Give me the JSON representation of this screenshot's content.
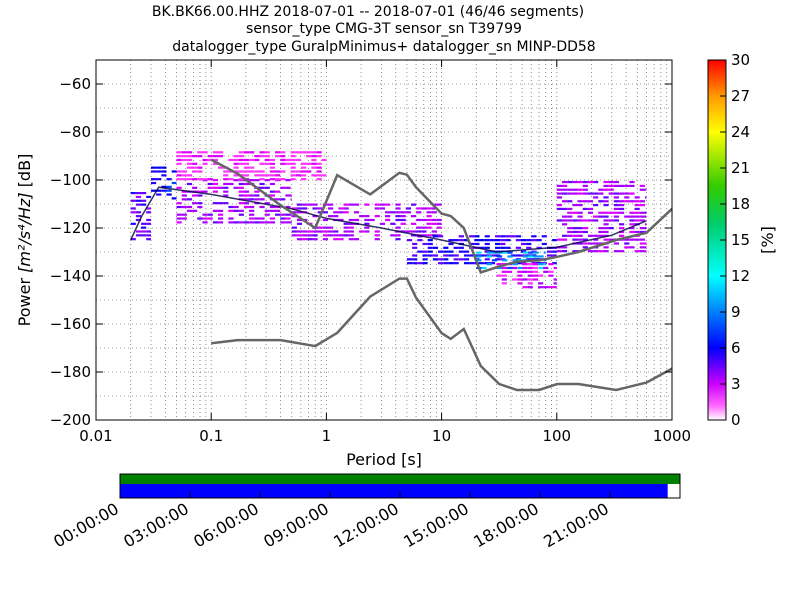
{
  "title": {
    "line1": "BK.BK66.00.HHZ   2018-07-01 -- 2018-07-01  (46/46 segments)",
    "line2": "sensor_type CMG-3T sensor_sn T39799",
    "line3": "datalogger_type GuralpMinimus+ datalogger_sn MINP-DD58"
  },
  "chart_data": {
    "type": "heatmap",
    "xlabel": "Period [s]",
    "ylabel_prefix": "Power ",
    "ylabel_units": "[m²/s⁴/Hz]",
    "ylabel_suffix": " [dB]",
    "x_scale": "log",
    "xlim": [
      0.01,
      1000
    ],
    "ylim": [
      -200,
      -50
    ],
    "x_tick_labels": [
      "0.01",
      "0.1",
      "1",
      "10",
      "100",
      "1000"
    ],
    "x_ticks": [
      0.01,
      0.1,
      1,
      10,
      100,
      1000
    ],
    "y_ticks": [
      -60,
      -80,
      -100,
      -120,
      -140,
      -160,
      -180,
      -200
    ],
    "y_tick_labels": [
      "−60",
      "−80",
      "−100",
      "−120",
      "−140",
      "−160",
      "−180",
      "−200"
    ],
    "colorbar": {
      "label": "[%]",
      "min": 0,
      "max": 30,
      "ticks": [
        0,
        3,
        6,
        9,
        12,
        15,
        18,
        21,
        24,
        27,
        30
      ],
      "tick_labels": [
        "0",
        "3",
        "6",
        "9",
        "12",
        "15",
        "18",
        "21",
        "24",
        "27",
        "30"
      ]
    },
    "noise_models": {
      "new_high_noise_model": [
        [
          0.1,
          -91.5
        ],
        [
          0.17,
          -97.4
        ],
        [
          0.4,
          -110.5
        ],
        [
          0.8,
          -120
        ],
        [
          1.24,
          -98
        ],
        [
          2.4,
          -106
        ],
        [
          4.3,
          -97
        ],
        [
          5,
          -97.8
        ],
        [
          6,
          -103
        ],
        [
          10,
          -114
        ],
        [
          12,
          -115
        ],
        [
          15.6,
          -120
        ],
        [
          21.9,
          -138.5
        ],
        [
          31.6,
          -136
        ],
        [
          45,
          -134
        ],
        [
          70,
          -133.5
        ],
        [
          101,
          -132
        ],
        [
          154,
          -130
        ],
        [
          328,
          -125
        ],
        [
          600,
          -122
        ],
        [
          1000,
          -112
        ]
      ],
      "new_low_noise_model": [
        [
          0.1,
          -168
        ],
        [
          0.17,
          -166.7
        ],
        [
          0.4,
          -166.7
        ],
        [
          0.8,
          -169.2
        ],
        [
          1.24,
          -163.7
        ],
        [
          2.4,
          -148.6
        ],
        [
          4.3,
          -141.1
        ],
        [
          5,
          -141.1
        ],
        [
          6,
          -149
        ],
        [
          10,
          -163.8
        ],
        [
          12,
          -166.2
        ],
        [
          15.6,
          -162.1
        ],
        [
          21.9,
          -177.5
        ],
        [
          31.6,
          -185
        ],
        [
          45,
          -187.5
        ],
        [
          70,
          -187.5
        ],
        [
          101,
          -185
        ],
        [
          154,
          -185
        ],
        [
          328,
          -187.5
        ],
        [
          600,
          -184.4
        ],
        [
          1000,
          -178.6
        ]
      ]
    },
    "mean_curve": [
      [
        0.02,
        -125
      ],
      [
        0.025,
        -115
      ],
      [
        0.035,
        -103
      ],
      [
        0.1,
        -106
      ],
      [
        0.5,
        -112
      ],
      [
        1,
        -116
      ],
      [
        3,
        -120
      ],
      [
        10,
        -125
      ],
      [
        30,
        -130
      ],
      [
        100,
        -128
      ],
      [
        300,
        -123
      ],
      [
        600,
        -117
      ]
    ],
    "density_bands": [
      {
        "x": [
          0.02,
          0.03
        ],
        "y": [
          -125,
          -105
        ],
        "percent": 4
      },
      {
        "x": [
          0.03,
          0.05
        ],
        "y": [
          -108,
          -95
        ],
        "percent": 6
      },
      {
        "x": [
          0.05,
          0.5
        ],
        "y": [
          -118,
          -100
        ],
        "percent": 3
      },
      {
        "x": [
          0.05,
          1
        ],
        "y": [
          -100,
          -88
        ],
        "percent": 1
      },
      {
        "x": [
          0.5,
          10
        ],
        "y": [
          -125,
          -110
        ],
        "percent": 3
      },
      {
        "x": [
          5,
          100
        ],
        "y": [
          -135,
          -123
        ],
        "percent": 5
      },
      {
        "x": [
          20,
          80
        ],
        "y": [
          -137,
          -130
        ],
        "percent": 8
      },
      {
        "x": [
          30,
          100
        ],
        "y": [
          -145,
          -135
        ],
        "percent": 2
      },
      {
        "x": [
          100,
          600
        ],
        "y": [
          -130,
          -100
        ],
        "percent": 3
      }
    ]
  },
  "time_axis": {
    "labels": [
      "00:00:00",
      "03:00:00",
      "06:00:00",
      "09:00:00",
      "12:00:00",
      "15:00:00",
      "18:00:00",
      "21:00:00"
    ],
    "coverage_fraction": 0.978,
    "colors": {
      "data_available": "#008000",
      "segments": "#0000ff"
    }
  }
}
